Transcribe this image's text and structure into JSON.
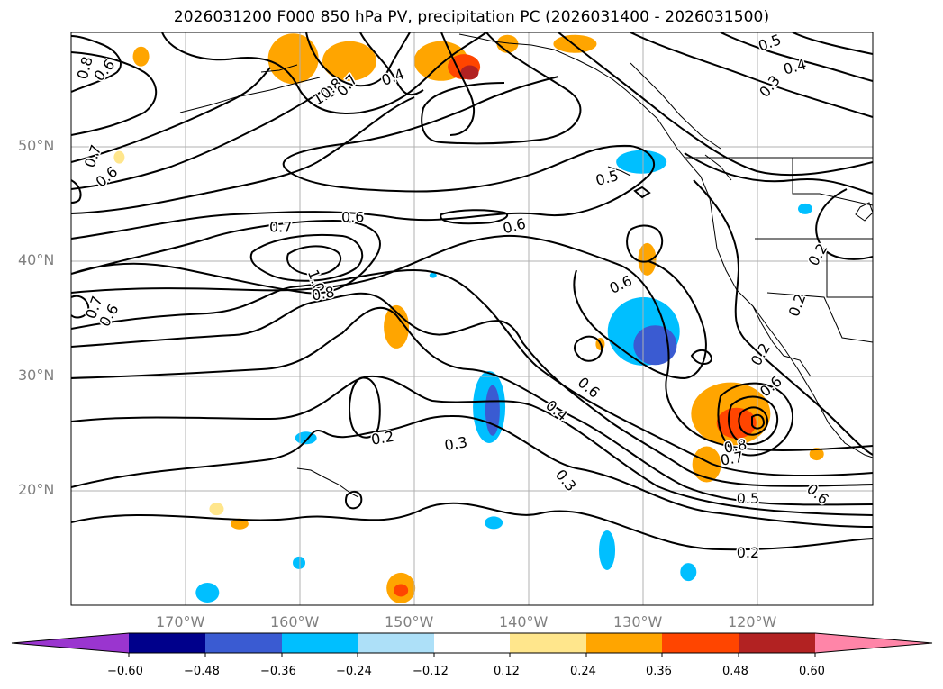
{
  "title": "2026031200 F000 850 hPa PV, precipitation PC (2026031400 - 2026031500)",
  "latitude_labels": [
    "50°N",
    "40°N",
    "30°N",
    "20°N"
  ],
  "longitude_labels": [
    "170°W",
    "160°W",
    "150°W",
    "140°W",
    "130°W",
    "120°W"
  ],
  "map_extent": {
    "lon_min": -180,
    "lon_max": -110,
    "lat_min": 10,
    "lat_max": 60
  },
  "colorbar": {
    "ticks": [
      "−0.60",
      "−0.48",
      "−0.36",
      "−0.24",
      "−0.12",
      "0.12",
      "0.24",
      "0.36",
      "0.48",
      "0.60"
    ],
    "colors": [
      "#9a35cf",
      "#00008b",
      "#3a5bd2",
      "#00bfff",
      "#ade0f8",
      "#ffffff",
      "#ffe68c",
      "#ffa500",
      "#ff4500",
      "#b22222",
      "#ff85a8"
    ]
  },
  "contour_labels": [
    {
      "text": "0.8",
      "lon": -178.8,
      "lat": 56.9,
      "rot": -75
    },
    {
      "text": "0.6",
      "lon": -177.1,
      "lat": 56.7,
      "rot": -50
    },
    {
      "text": "0.7",
      "lon": -178.1,
      "lat": 49.2,
      "rot": -70
    },
    {
      "text": "0.6",
      "lon": -176.9,
      "lat": 47.4,
      "rot": -40
    },
    {
      "text": "1.0",
      "lon": -157.9,
      "lat": 54.5,
      "rot": -30
    },
    {
      "text": "0.8",
      "lon": -157.3,
      "lat": 55.1,
      "rot": -40
    },
    {
      "text": "0.7",
      "lon": -155.9,
      "lat": 55.4,
      "rot": -50
    },
    {
      "text": "0.4",
      "lon": -151.9,
      "lat": 56.1,
      "rot": -20
    },
    {
      "text": "0.7",
      "lon": -161.7,
      "lat": 43.0,
      "rot": 0
    },
    {
      "text": "0.6",
      "lon": -155.4,
      "lat": 43.9,
      "rot": 0
    },
    {
      "text": "0.6",
      "lon": -141.3,
      "lat": 43.1,
      "rot": -15
    },
    {
      "text": "0.5",
      "lon": -133.2,
      "lat": 47.3,
      "rot": -15
    },
    {
      "text": "0.6",
      "lon": -132.0,
      "lat": 38.0,
      "rot": -25
    },
    {
      "text": "1.0",
      "lon": -158.6,
      "lat": 38.3,
      "rot": 70
    },
    {
      "text": "0.8",
      "lon": -158.0,
      "lat": 37.2,
      "rot": -10
    },
    {
      "text": "0.7",
      "lon": -178.0,
      "lat": 36.0,
      "rot": -70
    },
    {
      "text": "0.6",
      "lon": -176.7,
      "lat": 35.3,
      "rot": -60
    },
    {
      "text": "0.2",
      "lon": -152.8,
      "lat": 24.6,
      "rot": -10
    },
    {
      "text": "0.3",
      "lon": -146.4,
      "lat": 24.1,
      "rot": -10
    },
    {
      "text": "0.4",
      "lon": -137.6,
      "lat": 27.0,
      "rot": 40
    },
    {
      "text": "0.6",
      "lon": -134.8,
      "lat": 29.0,
      "rot": 40
    },
    {
      "text": "0.3",
      "lon": -136.8,
      "lat": 20.9,
      "rot": 50
    },
    {
      "text": "0.5",
      "lon": -120.9,
      "lat": 19.3,
      "rot": 0
    },
    {
      "text": "0.2",
      "lon": -120.9,
      "lat": 14.6,
      "rot": 0
    },
    {
      "text": "0.8",
      "lon": -122.0,
      "lat": 23.9,
      "rot": -10
    },
    {
      "text": "0.7",
      "lon": -122.3,
      "lat": 22.8,
      "rot": -10
    },
    {
      "text": "0.6",
      "lon": -114.8,
      "lat": 19.7,
      "rot": 40
    },
    {
      "text": "0.6",
      "lon": -118.9,
      "lat": 29.1,
      "rot": -40
    },
    {
      "text": "0.5",
      "lon": -119.0,
      "lat": 59.1,
      "rot": -20
    },
    {
      "text": "0.4",
      "lon": -116.8,
      "lat": 57.0,
      "rot": -15
    },
    {
      "text": "0.3",
      "lon": -119.0,
      "lat": 55.3,
      "rot": -50
    },
    {
      "text": "0.2",
      "lon": -114.8,
      "lat": 40.6,
      "rot": -60
    },
    {
      "text": "0.2",
      "lon": -116.6,
      "lat": 36.2,
      "rot": -70
    },
    {
      "text": "0.2",
      "lon": -119.8,
      "lat": 31.9,
      "rot": -60
    }
  ],
  "precip_shading": [
    {
      "lon": -160.6,
      "lat": 57.7,
      "rx": 28,
      "ry": 28,
      "color": "#ffa500"
    },
    {
      "lon": -155.7,
      "lat": 57.5,
      "rx": 30,
      "ry": 22,
      "color": "#ffa500"
    },
    {
      "lon": -147.7,
      "lat": 57.5,
      "rx": 30,
      "ry": 22,
      "color": "#ffa500"
    },
    {
      "lon": -145.7,
      "lat": 57.0,
      "rx": 18,
      "ry": 14,
      "color": "#ff4500"
    },
    {
      "lon": -145.2,
      "lat": 56.5,
      "rx": 10,
      "ry": 8,
      "color": "#b22222"
    },
    {
      "lon": -141.9,
      "lat": 59.0,
      "rx": 12,
      "ry": 10,
      "color": "#ffa500"
    },
    {
      "lon": -173.9,
      "lat": 57.9,
      "rx": 9,
      "ry": 11,
      "color": "#ffa500"
    },
    {
      "lon": -136.0,
      "lat": 59.0,
      "rx": 24,
      "ry": 10,
      "color": "#ffa500"
    },
    {
      "lon": -130.2,
      "lat": 48.7,
      "rx": 28,
      "ry": 13,
      "color": "#00bfff"
    },
    {
      "lon": -129.7,
      "lat": 40.2,
      "rx": 10,
      "ry": 18,
      "color": "#ffa500"
    },
    {
      "lon": -130.0,
      "lat": 33.9,
      "rx": 40,
      "ry": 38,
      "color": "#00bfff"
    },
    {
      "lon": -129.0,
      "lat": 32.7,
      "rx": 24,
      "ry": 22,
      "color": "#3a5bd2"
    },
    {
      "lon": -122.4,
      "lat": 26.7,
      "rx": 44,
      "ry": 35,
      "color": "#ffa500"
    },
    {
      "lon": -121.9,
      "lat": 25.9,
      "rx": 22,
      "ry": 17,
      "color": "#ff4500"
    },
    {
      "lon": -124.5,
      "lat": 22.3,
      "rx": 16,
      "ry": 20,
      "color": "#ffa500"
    },
    {
      "lon": -151.6,
      "lat": 34.3,
      "rx": 14,
      "ry": 24,
      "color": "#ffa500"
    },
    {
      "lon": -143.5,
      "lat": 27.3,
      "rx": 18,
      "ry": 40,
      "color": "#00bfff"
    },
    {
      "lon": -143.2,
      "lat": 27.0,
      "rx": 8,
      "ry": 28,
      "color": "#3a5bd2"
    },
    {
      "lon": -133.8,
      "lat": 32.8,
      "rx": 5,
      "ry": 7,
      "color": "#ffa500"
    },
    {
      "lon": -159.5,
      "lat": 24.6,
      "rx": 12,
      "ry": 7,
      "color": "#00bfff"
    },
    {
      "lon": -148.4,
      "lat": 38.8,
      "rx": 4,
      "ry": 3,
      "color": "#00bfff"
    },
    {
      "lon": -165.3,
      "lat": 17.1,
      "rx": 10,
      "ry": 6,
      "color": "#ffa500"
    },
    {
      "lon": -167.3,
      "lat": 18.4,
      "rx": 8,
      "ry": 7,
      "color": "#ffe68c"
    },
    {
      "lon": -168.1,
      "lat": 11.1,
      "rx": 13,
      "ry": 11,
      "color": "#00bfff"
    },
    {
      "lon": -160.1,
      "lat": 13.7,
      "rx": 7,
      "ry": 7,
      "color": "#00bfff"
    },
    {
      "lon": -151.2,
      "lat": 11.5,
      "rx": 16,
      "ry": 17,
      "color": "#ffa500"
    },
    {
      "lon": -151.2,
      "lat": 11.3,
      "rx": 8,
      "ry": 7,
      "color": "#ff4500"
    },
    {
      "lon": -143.1,
      "lat": 17.2,
      "rx": 10,
      "ry": 7,
      "color": "#00bfff"
    },
    {
      "lon": -133.2,
      "lat": 14.8,
      "rx": 9,
      "ry": 22,
      "color": "#00bfff"
    },
    {
      "lon": -126.1,
      "lat": 12.9,
      "rx": 9,
      "ry": 10,
      "color": "#00bfff"
    },
    {
      "lon": -114.9,
      "lat": 23.2,
      "rx": 8,
      "ry": 7,
      "color": "#ffa500"
    },
    {
      "lon": -175.8,
      "lat": 49.1,
      "rx": 6,
      "ry": 7,
      "color": "#ffe68c"
    },
    {
      "lon": -115.9,
      "lat": 44.6,
      "rx": 8,
      "ry": 6,
      "color": "#00bfff"
    }
  ]
}
